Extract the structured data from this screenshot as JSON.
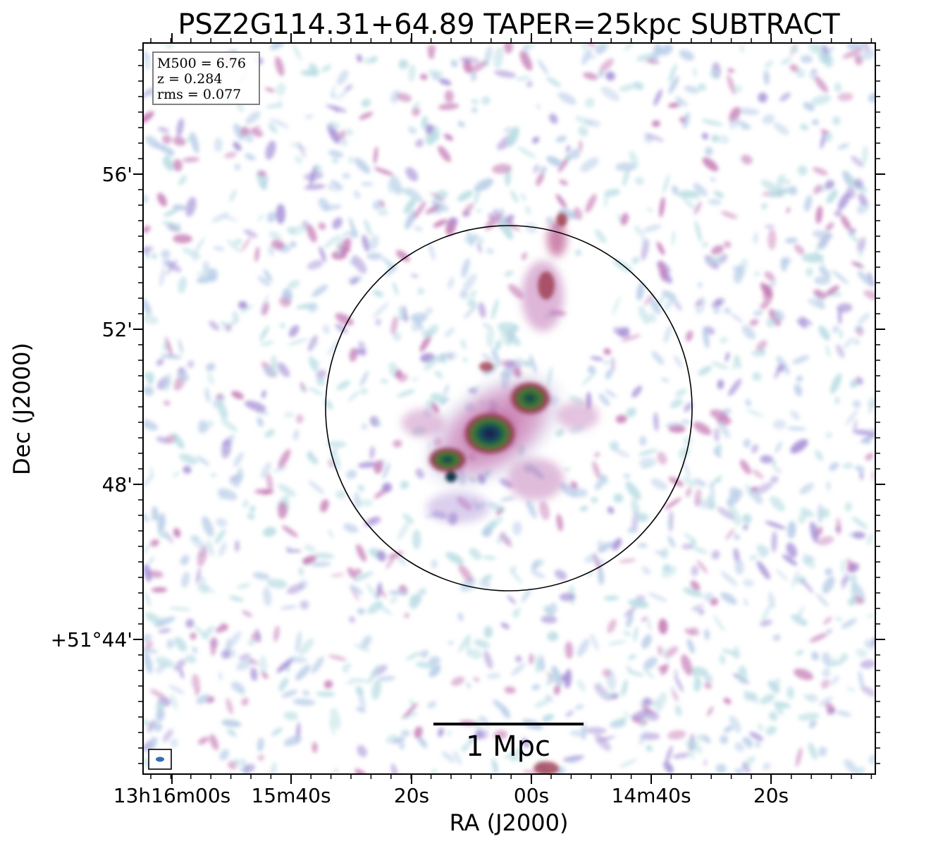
{
  "figure": {
    "title": "PSZ2G114.31+64.89 TAPER=25kpc SUBTRACT",
    "xlabel": "RA (J2000)",
    "ylabel": "Dec (J2000)",
    "info_box": {
      "line1": "M500 = 6.76",
      "line2": "z = 0.284",
      "line3": "rms = 0.077"
    },
    "scale_bar_label": "1 Mpc",
    "x_ticks": [
      "13h16m00s",
      "15m40s",
      "20s",
      "00s",
      "14m40s",
      "20s"
    ],
    "y_ticks": [
      "56'",
      "52'",
      "48'",
      "+51°44'"
    ],
    "colors": {
      "frame": "#000000",
      "noise_light": "#b8cde8",
      "noise_cyan": "#b9dde3",
      "noise_purple": "#a58fd6",
      "noise_magenta": "#c478b4",
      "emission_red": "#9b3a4e",
      "emission_green": "#3f7d34",
      "emission_dark": "#0e3a4e",
      "emission_core": "#2a1a55",
      "beam": "#2e6fb5"
    }
  }
}
